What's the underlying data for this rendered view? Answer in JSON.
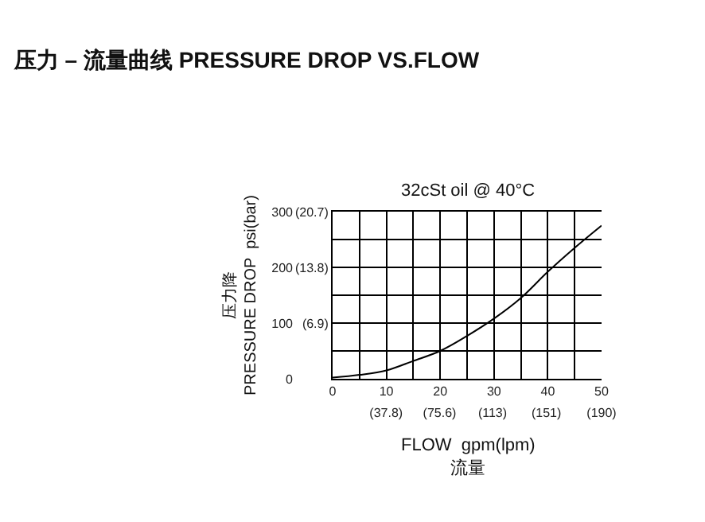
{
  "chart_data": {
    "type": "line",
    "title": "压力 – 流量曲线 PRESSURE DROP VS.FLOW",
    "subtitle": "32cSt oil @ 40°C",
    "xlabel": "FLOW  gpm(lpm)\n流量",
    "ylabel": "压力降\nPRESSURE DROP  psi(bar)",
    "x": [
      0,
      5,
      10,
      15,
      20,
      25,
      30,
      35,
      40,
      45,
      50
    ],
    "series": [
      {
        "color": "#000000",
        "values": [
          2,
          7,
          15,
          32,
          50,
          77,
          108,
          145,
          192,
          235,
          275
        ]
      }
    ],
    "xlim": [
      0,
      50
    ],
    "ylim": [
      0,
      300
    ],
    "xticks": [
      0,
      {
        "value": 5,
        "label": null
      },
      10,
      {
        "value": 15,
        "label": null
      },
      20,
      {
        "value": 25,
        "label": null
      },
      30,
      {
        "value": 35,
        "label": null
      },
      40,
      {
        "value": 45,
        "label": null
      },
      50
    ],
    "yticks": [
      0,
      {
        "value": 50,
        "label": null
      },
      100,
      {
        "value": 150,
        "label": null
      },
      200,
      {
        "value": 250,
        "label": null
      },
      300
    ],
    "x2lim": [
      0,
      190
    ],
    "x2ticks": [
      {
        "value": 37.8,
        "label": "(37.8)"
      },
      {
        "value": 75.6,
        "label": "(75.6)"
      },
      {
        "value": 113,
        "label": "(113)"
      },
      {
        "value": 151,
        "label": "(151)"
      },
      {
        "value": 190,
        "label": "(190)"
      }
    ],
    "y2lim": [
      0,
      20.7
    ],
    "y2ticks": [
      {
        "value": 6.9,
        "label": "(6.9)"
      },
      {
        "value": 13.8,
        "label": "(13.8)"
      },
      {
        "value": 20.7,
        "label": "(20.7)"
      }
    ],
    "grid": true,
    "marker": "none",
    "line_style": "solid"
  }
}
